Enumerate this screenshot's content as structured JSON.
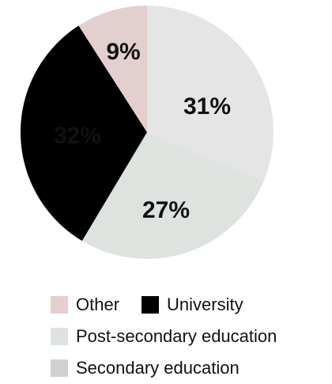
{
  "chart_data": {
    "type": "pie",
    "title": "",
    "slices": [
      {
        "name": "Secondary education",
        "value": 31,
        "label": "31%",
        "color": "#e5e5e5"
      },
      {
        "name": "Post-secondary education",
        "value": 27,
        "label": "27%",
        "color": "#dfe3df"
      },
      {
        "name": "University",
        "value": 32,
        "label": "32%",
        "color": "#000000"
      },
      {
        "name": "Other",
        "value": 9,
        "label": "9%",
        "color": "#e4cfcf"
      }
    ],
    "legend": {
      "placement": "bottom",
      "rows": [
        [
          {
            "name": "Other",
            "color": "#e4cfcf"
          },
          {
            "name": "University",
            "color": "#000000"
          }
        ],
        [
          {
            "name": "Post-secondary education",
            "color": "#dfe3df"
          }
        ],
        [
          {
            "name": "Secondary education",
            "color": "#d0d0d0"
          }
        ]
      ]
    },
    "label_color_on_dark": "#ffffff",
    "label_color_on_light": "#111111"
  }
}
